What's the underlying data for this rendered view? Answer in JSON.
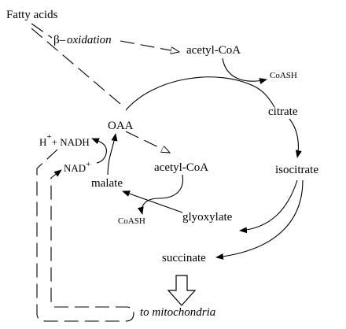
{
  "labels": {
    "fatty_acids": "Fatty acids",
    "beta_prefix": "β–",
    "beta_oxidation": "oxidation",
    "acetyl_coa_top": "acetyl-CoA",
    "coash_top": "CoASH",
    "citrate": "citrate",
    "oaa": "OAA",
    "h_plus_nadh": "H",
    "plus_sup": "+",
    "nadh_suffix": "+ NADH",
    "nad": "NAD",
    "nad_sup": "+",
    "acetyl_coa_mid": "acetyl-CoA",
    "isocitrate": "isocitrate",
    "malate": "malate",
    "coash_bottom": "CoASH",
    "glyoxylate": "glyoxylate",
    "succinate": "succinate",
    "to_mitochondria": "to mitochondria"
  }
}
